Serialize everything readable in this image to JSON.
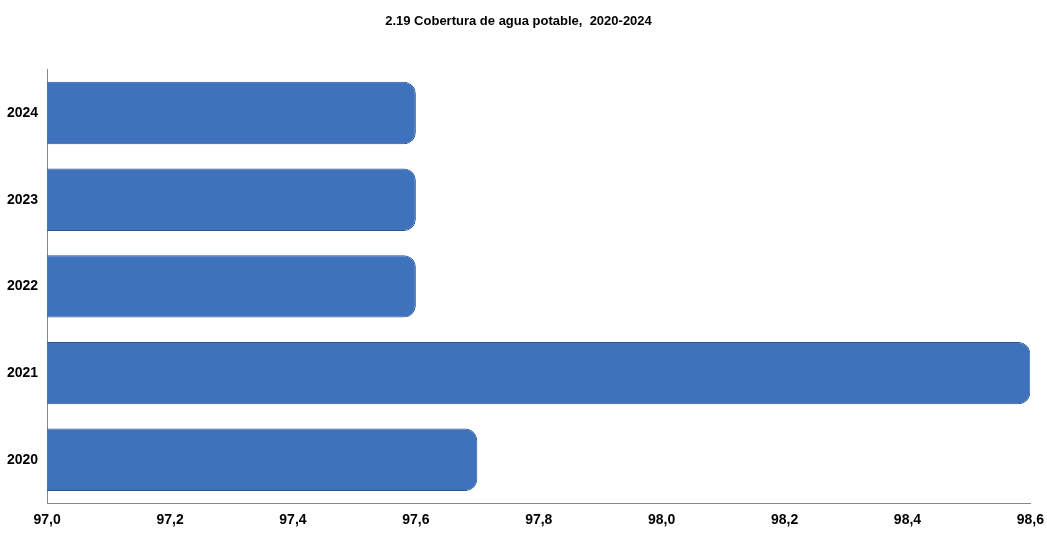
{
  "chart_data": {
    "type": "bar",
    "orientation": "horizontal",
    "title": "2.19 Cobertura de agua potable,  2020-2024",
    "categories": [
      "2024",
      "2023",
      "2022",
      "2021",
      "2020"
    ],
    "values": [
      97.6,
      97.6,
      97.6,
      98.6,
      97.7
    ],
    "color": "#3f72bd",
    "xlim": [
      97.0,
      98.6
    ],
    "xticks": [
      {
        "value": 97.0,
        "label": "97,0"
      },
      {
        "value": 97.2,
        "label": "97,2"
      },
      {
        "value": 97.4,
        "label": "97,4"
      },
      {
        "value": 97.6,
        "label": "97,6"
      },
      {
        "value": 97.8,
        "label": "97,8"
      },
      {
        "value": 98.0,
        "label": "98,0"
      },
      {
        "value": 98.2,
        "label": "98,2"
      },
      {
        "value": 98.4,
        "label": "98,4"
      },
      {
        "value": 98.6,
        "label": "98,6"
      }
    ],
    "grid": false,
    "legend": false
  }
}
